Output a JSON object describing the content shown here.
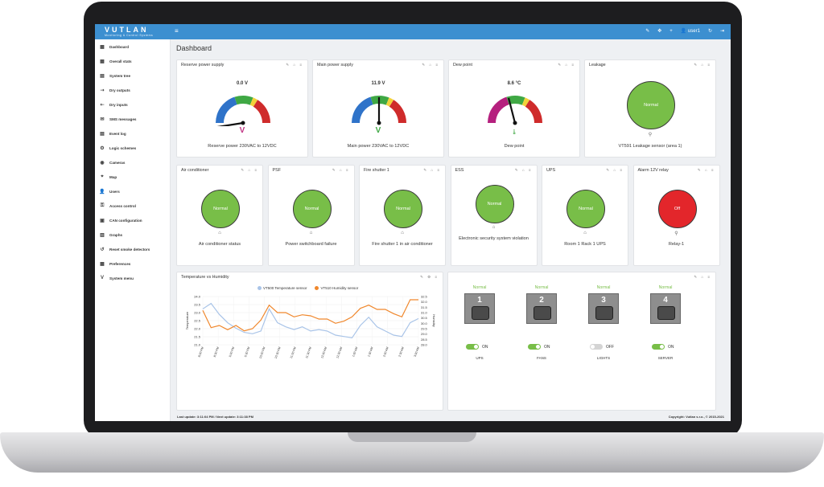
{
  "brand": {
    "name": "VUTLAN",
    "tagline": "Monitoring & Control Systems"
  },
  "topbar": {
    "menu_icon": "menu-icon",
    "user": "user1"
  },
  "sidebar": {
    "items": [
      {
        "label": "Dashboard",
        "icon": "dashboard-icon"
      },
      {
        "label": "Overall stats",
        "icon": "stats-icon"
      },
      {
        "label": "System tree",
        "icon": "tree-icon"
      },
      {
        "label": "Dry outputs",
        "icon": "output-icon"
      },
      {
        "label": "Dry inputs",
        "icon": "input-icon"
      },
      {
        "label": "SMS messages",
        "icon": "sms-icon"
      },
      {
        "label": "Event log",
        "icon": "log-icon"
      },
      {
        "label": "Logic schemes",
        "icon": "logic-icon"
      },
      {
        "label": "Cameras",
        "icon": "camera-icon"
      },
      {
        "label": "Map",
        "icon": "map-icon"
      },
      {
        "label": "Users",
        "icon": "users-icon"
      },
      {
        "label": "Access control",
        "icon": "access-icon"
      },
      {
        "label": "CAN configuration",
        "icon": "can-icon"
      },
      {
        "label": "Graphs",
        "icon": "graph-icon"
      },
      {
        "label": "Reset smoke detectors",
        "icon": "reset-icon"
      },
      {
        "label": "Preferences",
        "icon": "preferences-icon"
      },
      {
        "label": "System menu",
        "icon": "system-icon"
      }
    ]
  },
  "page": {
    "title": "Dashboard"
  },
  "gauges": [
    {
      "title": "Reserve power supply",
      "value": "0.0 V",
      "unit_symbol": "V",
      "caption": "Reserve power 230VAC to 12VDC",
      "needle": 0.0,
      "symbol_color": "#c13584"
    },
    {
      "title": "Main power supply",
      "value": "11.9 V",
      "unit_symbol": "V",
      "caption": "Main power 230VAC to 12VDC",
      "needle": 0.5,
      "symbol_color": "#3fa844"
    },
    {
      "title": "Dew point",
      "value": "8.6 °C",
      "unit_symbol": "",
      "caption": "Dew point",
      "needle": 0.42,
      "symbol_color": "#3fa844"
    }
  ],
  "leakage": {
    "title": "Leakage",
    "status": "Normal",
    "caption": "VT591 Leakage sensor (area 1)"
  },
  "status_cards": [
    {
      "title": "Air conditioner",
      "status": "Normal",
      "caption": "Air conditioner status",
      "state": "green"
    },
    {
      "title": "PSF",
      "status": "Normal",
      "caption": "Power switchboard failure",
      "state": "green"
    },
    {
      "title": "Fire shutter 1",
      "status": "Normal",
      "caption": "Fire shutter 1 in air conditioner",
      "state": "green"
    },
    {
      "title": "ESS",
      "status": "Normal",
      "caption": "Electronic security system violation",
      "state": "green"
    },
    {
      "title": "UPS",
      "status": "Normal",
      "caption": "Room 1 Rack 1 UPS",
      "state": "green"
    },
    {
      "title": "Alarm 12V relay",
      "status": "Off",
      "caption": "Relay-1",
      "state": "red"
    }
  ],
  "chart_card": {
    "title": "Temperature vs Humidity"
  },
  "chart_data": {
    "type": "line",
    "title": "",
    "series": [
      {
        "name": "VT500 Temperature sensor",
        "color": "#a9c4e8",
        "axis": "left",
        "values": [
          23.6,
          24.0,
          23.2,
          22.6,
          22.2,
          21.9,
          21.8,
          22.0,
          23.6,
          22.6,
          22.3,
          22.1,
          22.3,
          22.0,
          22.1,
          22.0,
          21.7,
          21.6,
          21.5,
          22.4,
          23.0,
          22.3,
          22.0,
          21.7,
          21.6,
          22.6,
          22.9
        ]
      },
      {
        "name": "VT510 Humidity sensor",
        "color": "#f0872c",
        "axis": "right",
        "values": [
          31.2,
          29.6,
          29.8,
          29.4,
          29.8,
          29.3,
          29.5,
          30.3,
          31.7,
          31.0,
          31.0,
          30.6,
          30.8,
          30.7,
          30.4,
          30.4,
          30.0,
          30.2,
          30.6,
          31.4,
          31.7,
          31.3,
          31.3,
          30.9,
          30.6,
          32.2,
          32.2
        ]
      }
    ],
    "ylim_left": [
      21.0,
      24.5
    ],
    "ylim_right": [
      28.0,
      32.5
    ],
    "left_ticks": [
      "24.0",
      "23.5",
      "23.0",
      "22.5",
      "22.0",
      "21.5",
      "21.0"
    ],
    "right_ticks": [
      "32.5",
      "32.0",
      "31.5",
      "31.0",
      "30.5",
      "30.0",
      "29.5",
      "29.0",
      "28.5",
      "28.0"
    ],
    "x_ticks": [
      "8:00 PM",
      "8:30 PM",
      "9:00 PM",
      "9:30 PM",
      "10:00 PM",
      "10:30 PM",
      "11:00 PM",
      "11:30 PM",
      "12:00 AM",
      "12:30 AM",
      "1:00 AM",
      "1:30 AM",
      "2:00 AM",
      "2:30 AM",
      "3:00 AM"
    ],
    "ylabel_left": "Temperature",
    "ylabel_right": "Humidity",
    "grid": true,
    "legend": "top"
  },
  "outlets": [
    {
      "number": "1",
      "status": "Normal",
      "toggle": "ON",
      "on": true,
      "label": "UPS"
    },
    {
      "number": "2",
      "status": "Normal",
      "toggle": "ON",
      "on": true,
      "label": "FANS"
    },
    {
      "number": "3",
      "status": "Normal",
      "toggle": "OFF",
      "on": false,
      "label": "LIGHTS"
    },
    {
      "number": "4",
      "status": "Normal",
      "toggle": "ON",
      "on": true,
      "label": "SERVER"
    }
  ],
  "footer": {
    "left": "Last update: 3:11:04 PM / Next update: 3:11:38 PM",
    "right": "Copyright: Vutlan s.r.o., © 2015-2021"
  }
}
